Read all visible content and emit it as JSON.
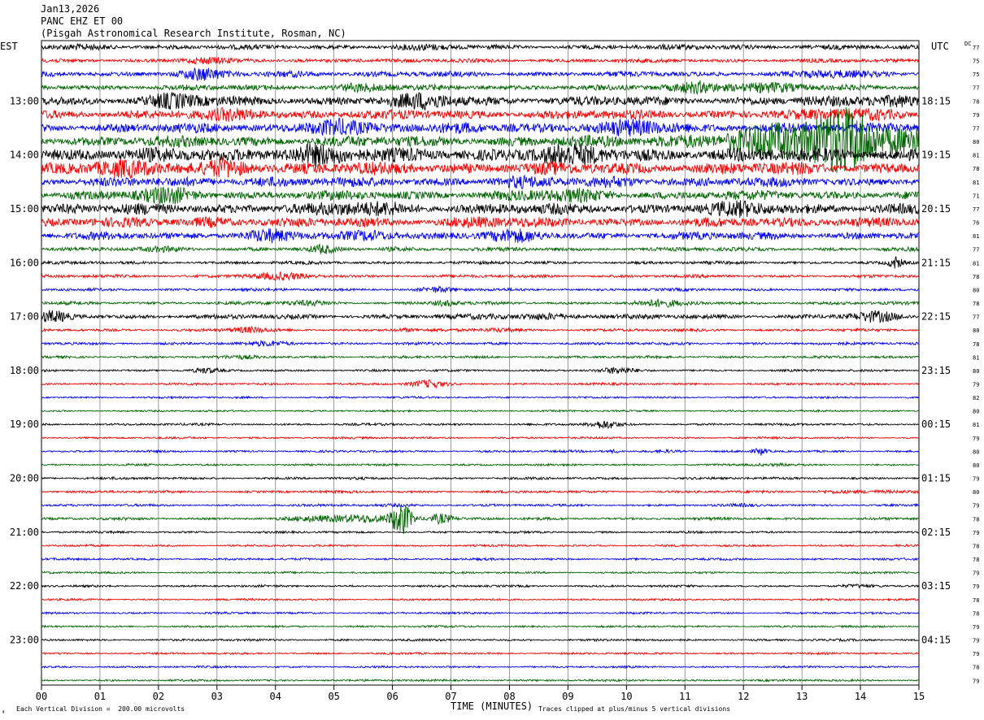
{
  "header": {
    "date": "Jan13,2026",
    "station": "PANC EHZ ET 00",
    "location": "(Pisgah Astronomical Research Institute, Rosman, NC)"
  },
  "left_zone": "EST",
  "right_zone": "UTC",
  "dc_label": "DC",
  "footer": {
    "scale_text": "Each Vertical Division =  200.00 microvolts",
    "xlabel": "TIME (MINUTES)",
    "clip_text": "Traces clipped at plus/minus 5 vertical divisions"
  },
  "colors": {
    "trace_cycle": [
      "#000000",
      "#ff0000",
      "#0000ff",
      "#006400"
    ],
    "grid": "#808080"
  },
  "chart_data": {
    "type": "line",
    "title": "PANC EHZ ET 00",
    "xlabel": "TIME (MINUTES)",
    "x_ticks": [
      "00",
      "01",
      "02",
      "03",
      "04",
      "05",
      "06",
      "07",
      "08",
      "09",
      "10",
      "11",
      "12",
      "13",
      "14",
      "15"
    ],
    "xlim": [
      0,
      15
    ],
    "traces_per_hour": 4,
    "trace_minutes": 15,
    "left_hour_labels": [
      "13:00",
      "14:00",
      "15:00",
      "16:00",
      "17:00",
      "18:00",
      "19:00",
      "20:00",
      "21:00",
      "22:00",
      "23:00"
    ],
    "right_hour_labels": [
      "18:15",
      "19:15",
      "20:15",
      "21:15",
      "22:15",
      "23:15",
      "00:15",
      "01:15",
      "02:15",
      "03:15",
      "04:15"
    ],
    "dc_offsets": [
      "77",
      "75",
      "75",
      "77",
      "78",
      "79",
      "77",
      "80",
      "81",
      "78",
      "81",
      "71",
      "77",
      "76",
      "81",
      "77",
      "81",
      "78",
      "80",
      "78",
      "77",
      "80",
      "78",
      "81",
      "80",
      "79",
      "82",
      "80",
      "81",
      "79",
      "80",
      "80",
      "79",
      "80",
      "79",
      "78",
      "79",
      "78",
      "78",
      "79",
      "79",
      "78",
      "78",
      "79",
      "79",
      "79",
      "78",
      "79"
    ],
    "traces": [
      {
        "amp": 3,
        "events": [
          [
            1.0,
            0.8,
            1.5
          ],
          [
            6.5,
            0.6,
            1.5
          ],
          [
            11.5,
            0.6,
            1.5
          ]
        ]
      },
      {
        "amp": 2.5,
        "events": [
          [
            2.7,
            0.4,
            2.5
          ],
          [
            5.3,
            0.3,
            2
          ]
        ]
      },
      {
        "amp": 3.5,
        "events": [
          [
            2.7,
            0.4,
            2.5
          ],
          [
            4.5,
            0.5,
            1.6
          ],
          [
            13.5,
            0.5,
            2
          ]
        ]
      },
      {
        "amp": 3.5,
        "events": [
          [
            5.5,
            0.5,
            2.2
          ],
          [
            11.4,
            0.5,
            3.5
          ],
          [
            12.5,
            0.6,
            2.3
          ]
        ]
      },
      {
        "amp": 6,
        "events": [
          [
            2.3,
            0.5,
            2
          ],
          [
            6.7,
            0.6,
            2
          ],
          [
            14.5,
            0.5,
            2
          ]
        ]
      },
      {
        "amp": 6,
        "events": [
          [
            3.5,
            0.5,
            1.8
          ],
          [
            14.0,
            0.5,
            2
          ]
        ]
      },
      {
        "amp": 6,
        "events": [
          [
            4.9,
            0.4,
            3.5
          ],
          [
            7.5,
            0.5,
            2
          ],
          [
            10.4,
            0.6,
            2.5
          ],
          [
            14.7,
            0.5,
            2
          ]
        ]
      },
      {
        "amp": 7,
        "events": [
          [
            12.5,
            1.5,
            3
          ],
          [
            14.3,
            1.0,
            4.5
          ]
        ]
      },
      {
        "amp": 9,
        "events": [
          [
            4.5,
            0.6,
            2
          ],
          [
            9.0,
            0.8,
            1.6
          ]
        ]
      },
      {
        "amp": 8,
        "events": [
          [
            1.0,
            0.7,
            1.8
          ],
          [
            3.3,
            0.4,
            2.3
          ]
        ]
      },
      {
        "amp": 6,
        "events": [
          [
            3.7,
            0.5,
            1.5
          ],
          [
            8.0,
            0.5,
            1.5
          ],
          [
            10.0,
            0.6,
            1.5
          ]
        ]
      },
      {
        "amp": 6,
        "events": [
          [
            2.2,
            0.5,
            2
          ],
          [
            9.0,
            0.8,
            1.6
          ]
        ]
      },
      {
        "amp": 7,
        "events": [
          [
            5.6,
            0.6,
            1.8
          ],
          [
            12.0,
            0.6,
            1.5
          ]
        ]
      },
      {
        "amp": 6,
        "events": [
          [
            3.0,
            0.5,
            1.6
          ],
          [
            7.5,
            0.5,
            1.6
          ],
          [
            13.7,
            0.5,
            1.6
          ]
        ]
      },
      {
        "amp": 5,
        "events": [
          [
            3.8,
            0.5,
            2
          ],
          [
            5.8,
            0.4,
            2.2
          ],
          [
            8.0,
            0.5,
            1.8
          ]
        ]
      },
      {
        "amp": 2.5,
        "events": [
          [
            2.2,
            0.5,
            2
          ],
          [
            4.8,
            0.2,
            2.5
          ],
          [
            6.0,
            0.3,
            2
          ]
        ]
      },
      {
        "amp": 2,
        "events": [
          [
            14.6,
            0.1,
            4
          ]
        ]
      },
      {
        "amp": 2,
        "events": [
          [
            4.0,
            0.7,
            2.5
          ]
        ]
      },
      {
        "amp": 1.8,
        "events": [
          [
            6.8,
            0.3,
            2.5
          ]
        ]
      },
      {
        "amp": 2,
        "events": [
          [
            4.5,
            0.5,
            2.2
          ],
          [
            6.9,
            0.2,
            3
          ],
          [
            10.6,
            0.5,
            2.5
          ]
        ]
      },
      {
        "amp": 3,
        "events": [
          [
            0.2,
            0.3,
            2.5
          ],
          [
            8.5,
            0.8,
            2
          ],
          [
            14.2,
            0.4,
            2.5
          ]
        ]
      },
      {
        "amp": 1.8,
        "events": [
          [
            3.5,
            0.3,
            3
          ],
          [
            7.8,
            0.3,
            2.5
          ],
          [
            6.2,
            0.2,
            2.5
          ]
        ]
      },
      {
        "amp": 1.8,
        "events": [
          [
            4.0,
            0.4,
            2.5
          ]
        ]
      },
      {
        "amp": 1.6,
        "events": [
          [
            3.5,
            0.4,
            1.8
          ]
        ]
      },
      {
        "amp": 1.5,
        "events": [
          [
            2.8,
            0.2,
            2.5
          ],
          [
            9.8,
            0.3,
            3
          ]
        ]
      },
      {
        "amp": 1.5,
        "events": [
          [
            6.6,
            0.3,
            3.5
          ]
        ]
      },
      {
        "amp": 1.3,
        "events": []
      },
      {
        "amp": 1.2,
        "events": []
      },
      {
        "amp": 1.5,
        "events": [
          [
            9.6,
            0.25,
            4
          ]
        ]
      },
      {
        "amp": 1.3,
        "events": []
      },
      {
        "amp": 1.4,
        "events": [
          [
            9.8,
            0.1,
            3
          ],
          [
            10.7,
            0.3,
            2.2
          ],
          [
            12.3,
            0.1,
            4
          ]
        ]
      },
      {
        "amp": 1.3,
        "events": [
          [
            12.5,
            0.4,
            1.8
          ]
        ]
      },
      {
        "amp": 1.6,
        "events": []
      },
      {
        "amp": 1.6,
        "events": [
          [
            13.5,
            0.3,
            2
          ],
          [
            14.3,
            0.4,
            2.5
          ]
        ]
      },
      {
        "amp": 1.5,
        "events": [
          [
            6.0,
            0.5,
            1.8
          ],
          [
            12.0,
            0.3,
            1.5
          ]
        ]
      },
      {
        "amp": 1.7,
        "events": [
          [
            5.3,
            0.8,
            4
          ],
          [
            6.2,
            0.18,
            12
          ],
          [
            6.8,
            0.2,
            6
          ]
        ]
      },
      {
        "amp": 1.4,
        "events": []
      },
      {
        "amp": 1.3,
        "events": []
      },
      {
        "amp": 1.4,
        "events": []
      },
      {
        "amp": 1.3,
        "events": []
      },
      {
        "amp": 1.4,
        "events": [
          [
            14.0,
            0.3,
            1.8
          ]
        ]
      },
      {
        "amp": 1.3,
        "events": []
      },
      {
        "amp": 1.3,
        "events": []
      },
      {
        "amp": 1.3,
        "events": []
      },
      {
        "amp": 1.4,
        "events": []
      },
      {
        "amp": 1.3,
        "events": []
      },
      {
        "amp": 1.3,
        "events": []
      },
      {
        "amp": 1.3,
        "events": []
      }
    ]
  }
}
